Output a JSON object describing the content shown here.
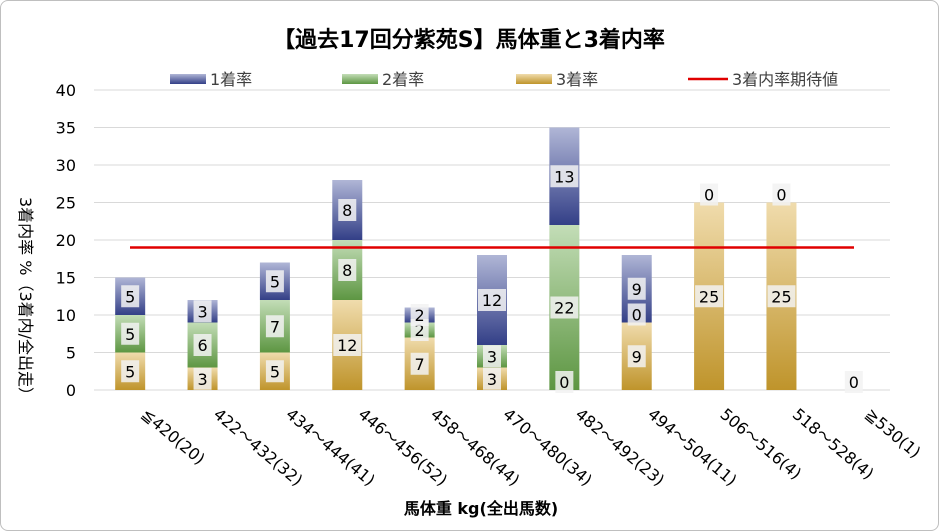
{
  "chart_data": {
    "type": "bar",
    "stacked": true,
    "title": "【過去17回分紫苑S】馬体重と3着内率",
    "xlabel": "馬体重 kg(全出馬数)",
    "ylabel": "3着内率 %（3着内/全出走）",
    "ylim": [
      0,
      40
    ],
    "yticks": [
      0,
      5,
      10,
      15,
      20,
      25,
      30,
      35,
      40
    ],
    "grid": true,
    "legend_position": "top",
    "categories": [
      "≦420(20)",
      "422～432(32)",
      "434～444(41)",
      "446～456(52)",
      "458～468(44)",
      "470～480(34)",
      "482～492(23)",
      "494～504(11)",
      "506～516(4)",
      "518～528(4)",
      "≧530(1)"
    ],
    "series": [
      {
        "name": "3着率",
        "color": "#d9a831",
        "values": [
          5,
          3,
          5,
          12,
          7,
          3,
          0,
          9,
          25,
          25,
          0
        ]
      },
      {
        "name": "2着率",
        "color": "#6aaa4b",
        "values": [
          5,
          6,
          7,
          8,
          2,
          3,
          22,
          0,
          0,
          0,
          0
        ]
      },
      {
        "name": "1着率",
        "color": "#3a4899",
        "values": [
          5,
          3,
          5,
          8,
          2,
          12,
          13,
          9,
          0,
          0,
          0
        ]
      }
    ],
    "bar_labels": [
      [
        "5",
        "5",
        "5"
      ],
      [
        "3",
        "6",
        "3"
      ],
      [
        "5",
        "7",
        "5"
      ],
      [
        "12",
        "8",
        "8"
      ],
      [
        "7",
        "2",
        "2"
      ],
      [
        "3",
        "3",
        "12"
      ],
      [
        "0",
        "22",
        "13"
      ],
      [
        "9",
        "0",
        "9"
      ],
      [
        "25",
        "",
        "0"
      ],
      [
        "25",
        "",
        "0"
      ],
      [
        "",
        "",
        "0"
      ]
    ],
    "reference_line": {
      "name": "3着内率期待値",
      "value": 19.0,
      "color": "#e00000"
    },
    "legend_order": [
      "1着率",
      "2着率",
      "3着率",
      "3着内率期待値"
    ]
  }
}
